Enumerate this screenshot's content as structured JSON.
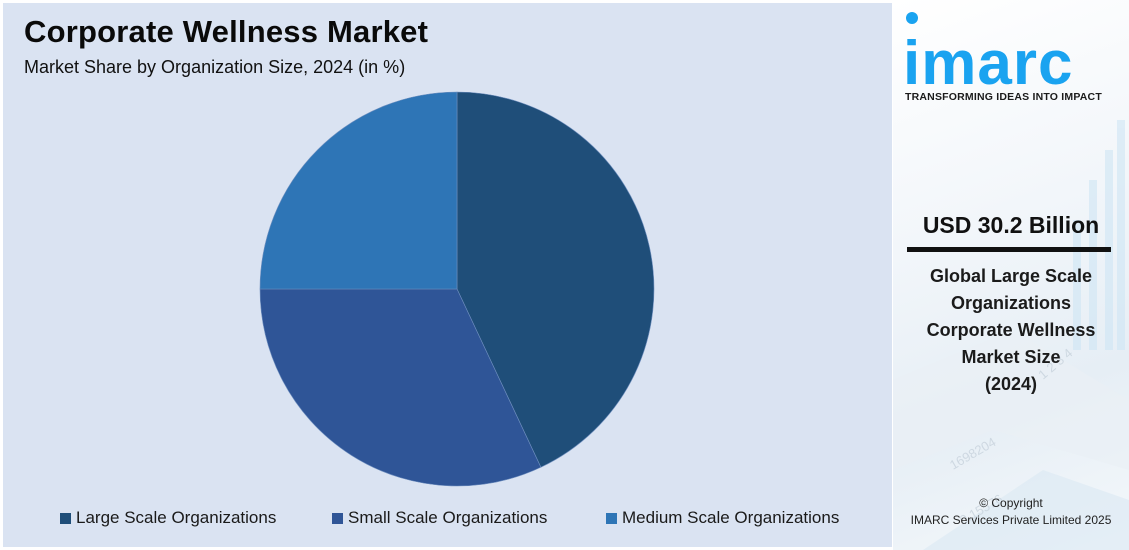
{
  "header": {
    "title": "Corporate Wellness Market",
    "subtitle": "Market Share by Organization Size, 2024 (in %)"
  },
  "legend": [
    {
      "label": "Large Scale Organizations",
      "color": "#1f4e79"
    },
    {
      "label": "Small Scale Organizations",
      "color": "#2f5597"
    },
    {
      "label": "Medium Scale Organizations",
      "color": "#2e75b6"
    }
  ],
  "sidebar": {
    "logo_text": "imarc",
    "tagline": "TRANSFORMING IDEAS INTO IMPACT",
    "value": "USD 30.2 Billion",
    "description_lines": [
      "Global Large Scale",
      "Organizations",
      "Corporate Wellness",
      "Market Size",
      "(2024)"
    ],
    "copyright_line1": "© Copyright",
    "copyright_line2": "IMARC Services Private Limited 2025",
    "brand_color": "#1aa3f0"
  },
  "chart_data": {
    "type": "pie",
    "title": "Corporate Wellness Market",
    "subtitle": "Market Share by Organization Size, 2024 (in %)",
    "categories": [
      "Large Scale Organizations",
      "Small Scale Organizations",
      "Medium Scale Organizations"
    ],
    "values": [
      43,
      32,
      25
    ],
    "colors": [
      "#1f4e79",
      "#2f5597",
      "#2e75b6"
    ],
    "start_angle": "12 o'clock, clockwise",
    "legend_position": "bottom",
    "data_labels": false
  }
}
